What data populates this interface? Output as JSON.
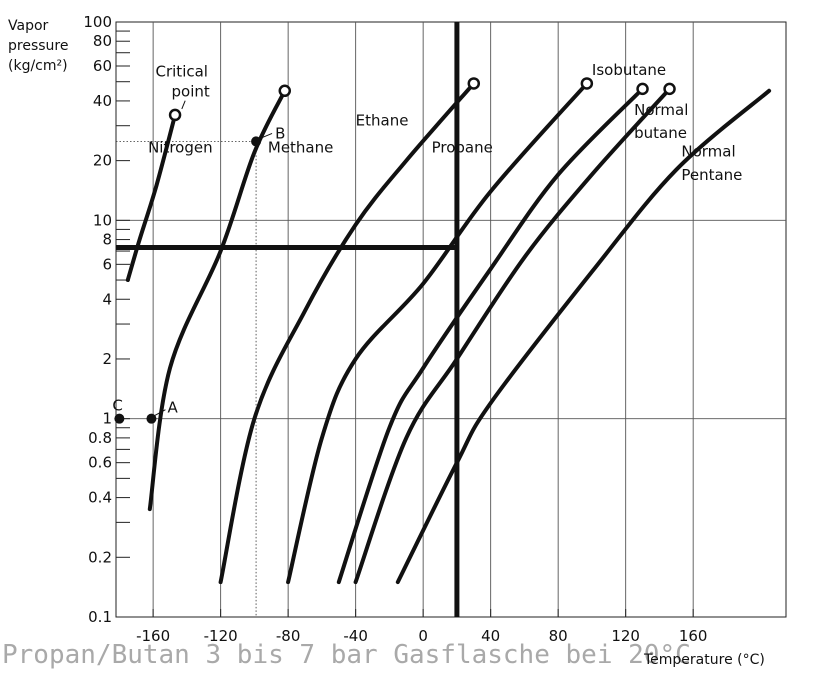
{
  "caption": "Propan/Butan 3 bis 7 bar Gasflasche bei 20°C",
  "chart_data": {
    "type": "line",
    "title": "",
    "ylabel_lines": [
      "Vapor",
      "pressure",
      "(kg/cm²)"
    ],
    "xlabel": "Temperature (°C)",
    "y_scale": "log",
    "xlim": [
      -182,
      215
    ],
    "ylim": [
      0.1,
      100
    ],
    "grid": true,
    "x_ticks": [
      -160,
      -120,
      -80,
      -40,
      0,
      40,
      80,
      120,
      160
    ],
    "x_tick_labels": [
      "-160",
      "-120",
      "-80",
      "-40",
      "0",
      "40",
      "80",
      "120",
      "160"
    ],
    "y_major_lines": [
      1,
      10
    ],
    "y_ticks": [
      0.1,
      0.2,
      0.4,
      0.6,
      0.8,
      1,
      2,
      4,
      6,
      8,
      10,
      20,
      40,
      60,
      80,
      100
    ],
    "y_tick_labels": [
      "0.1",
      "0.2",
      "0.4",
      "0.6",
      "0.8",
      "1",
      "2",
      "4",
      "6",
      "8",
      "10",
      "20",
      "40",
      "60",
      "80",
      "100"
    ],
    "y_minor_ticks": [
      0.3,
      0.5,
      0.7,
      0.9,
      3,
      5,
      7,
      9,
      30,
      50,
      70,
      90
    ],
    "series": [
      {
        "name": "Nitrogen",
        "points": [
          [
            -175,
            5
          ],
          [
            -168,
            8
          ],
          [
            -158,
            15
          ],
          [
            -147,
            34
          ]
        ],
        "critical": true
      },
      {
        "name": "Methane",
        "points": [
          [
            -162,
            0.35
          ],
          [
            -150,
            1.8
          ],
          [
            -120,
            7
          ],
          [
            -100,
            22
          ],
          [
            -82,
            45
          ]
        ],
        "critical": true
      },
      {
        "name": "Ethane",
        "points": [
          [
            -120,
            0.15
          ],
          [
            -100,
            1
          ],
          [
            -70,
            3.5
          ],
          [
            -40,
            9.5
          ],
          [
            -10,
            20
          ],
          [
            30,
            49
          ]
        ],
        "critical": true
      },
      {
        "name": "Propane",
        "points": [
          [
            -80,
            0.15
          ],
          [
            -60,
            0.8
          ],
          [
            -40,
            2
          ],
          [
            0,
            4.8
          ],
          [
            40,
            14
          ],
          [
            97,
            49
          ]
        ],
        "critical": true
      },
      {
        "name": "Isobutane",
        "points": [
          [
            -50,
            0.15
          ],
          [
            -20,
            0.9
          ],
          [
            0,
            1.8
          ],
          [
            40,
            5.7
          ],
          [
            80,
            17
          ],
          [
            130,
            46
          ]
        ],
        "critical": true
      },
      {
        "name": "Normal butane",
        "points": [
          [
            -40,
            0.15
          ],
          [
            -10,
            0.8
          ],
          [
            20,
            2
          ],
          [
            60,
            6.5
          ],
          [
            100,
            17
          ],
          [
            146,
            46
          ]
        ],
        "critical": true
      },
      {
        "name": "Normal Pentane",
        "points": [
          [
            -15,
            0.15
          ],
          [
            20,
            0.6
          ],
          [
            40,
            1.2
          ],
          [
            100,
            5.5
          ],
          [
            150,
            18
          ],
          [
            205,
            45
          ]
        ],
        "critical": false
      }
    ],
    "series_labels": [
      {
        "text": "Nitrogen",
        "x": -163,
        "y": 22
      },
      {
        "text": "Methane",
        "x": -92,
        "y": 22
      },
      {
        "text": "Ethane",
        "x": -40,
        "y": 30
      },
      {
        "text": "Propane",
        "x": 5,
        "y": 22
      },
      {
        "text": "Isobutane",
        "x": 100,
        "y": 54
      },
      {
        "text": "Normal",
        "x": 125,
        "y": 34
      },
      {
        "text": "butane",
        "x": 125,
        "y": 26
      },
      {
        "text": "Normal",
        "x": 153,
        "y": 21
      },
      {
        "text": "Pentane",
        "x": 153,
        "y": 16
      }
    ],
    "critical_point_label": {
      "lines": [
        "Critical",
        "point"
      ],
      "x": -142,
      "y": 53
    },
    "points": [
      {
        "label": "A",
        "x": -161,
        "y": 1
      },
      {
        "label": "B",
        "x": -99,
        "y": 25
      },
      {
        "label": "C",
        "x": -180,
        "y": 1
      }
    ],
    "dotted_guides": {
      "x": -99,
      "y": 25
    },
    "highlight": {
      "x": 20,
      "y": 7.3
    }
  }
}
